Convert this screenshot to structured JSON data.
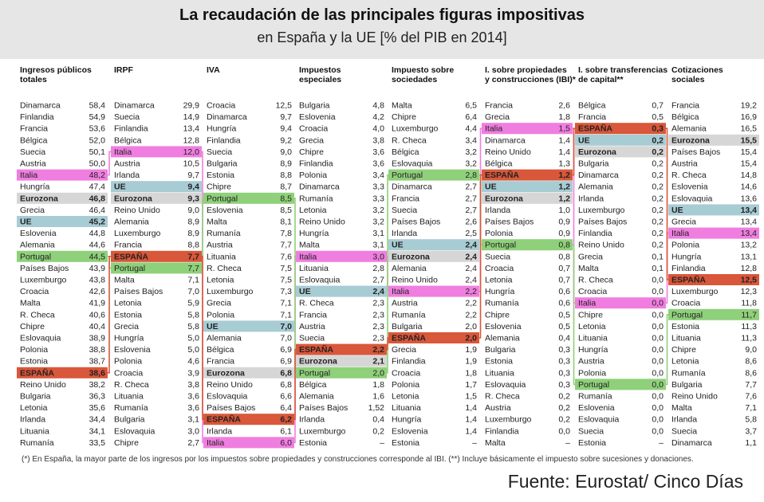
{
  "title": "La recaudación de las principales figuras impositivas",
  "subtitle": "en España y la UE [% del PIB en 2014]",
  "footnote": "(*) En España, la mayor parte de los ingresos por los impuestos sobre propiedades y construcciones corresponde al IBI. (**) Incluye básicamente el impuesto sobre sucesiones y donaciones.",
  "source": "Fuente: Eurostat/ Cinco Días",
  "colors": {
    "spain": "#d9573a",
    "eu": "#a8ccd4",
    "eurozone": "#d6d6d6",
    "portugal": "#8fd07a",
    "italy": "#f07ee0",
    "header_bg": "#e6e6e6"
  },
  "chart_data": {
    "type": "table",
    "highlights": {
      "ESPAÑA": "spain",
      "UE": "eu",
      "Eurozona": "eurozone",
      "Portugal": "portugal",
      "Italia": "italy"
    },
    "columns": [
      {
        "header": [
          "Ingresos públicos",
          "totales"
        ],
        "rows": [
          [
            "Dinamarca",
            "58,4"
          ],
          [
            "Finlandia",
            "54,9"
          ],
          [
            "Francia",
            "53,6"
          ],
          [
            "Bélgica",
            "52,0"
          ],
          [
            "Suecia",
            "50,1"
          ],
          [
            "Austria",
            "50,0"
          ],
          [
            "Italia",
            "48,2"
          ],
          [
            "Hungría",
            "47,4"
          ],
          [
            "Eurozona",
            "46,8"
          ],
          [
            "Grecia",
            "46,4"
          ],
          [
            "UE",
            "45,2"
          ],
          [
            "Eslovenia",
            "44,8"
          ],
          [
            "Alemania",
            "44,6"
          ],
          [
            "Portugal",
            "44,5"
          ],
          [
            "Países Bajos",
            "43,9"
          ],
          [
            "Luxemburgo",
            "43,8"
          ],
          [
            "Croacia",
            "42,6"
          ],
          [
            "Malta",
            "41,9"
          ],
          [
            "R. Checa",
            "40,6"
          ],
          [
            "Chipre",
            "40,4"
          ],
          [
            "Eslovaquia",
            "38,9"
          ],
          [
            "Polonia",
            "38,8"
          ],
          [
            "Estonia",
            "38,7"
          ],
          [
            "ESPAÑA",
            "38,6"
          ],
          [
            "Reino Unido",
            "38,2"
          ],
          [
            "Bulgaria",
            "36,3"
          ],
          [
            "Letonia",
            "35,6"
          ],
          [
            "Irlanda",
            "34,4"
          ],
          [
            "Lituania",
            "34,1"
          ],
          [
            "Rumanía",
            "33,5"
          ]
        ]
      },
      {
        "header": [
          "IRPF"
        ],
        "rows": [
          [
            "Dinamarca",
            "29,9"
          ],
          [
            "Suecia",
            "14,9"
          ],
          [
            "Finlandia",
            "13,4"
          ],
          [
            "Bélgica",
            "12,8"
          ],
          [
            "Italia",
            "12,0"
          ],
          [
            "Austria",
            "10,5"
          ],
          [
            "Irlanda",
            "9,7"
          ],
          [
            "UE",
            "9,4"
          ],
          [
            "Eurozona",
            "9,3"
          ],
          [
            "Reino Unido",
            "9,0"
          ],
          [
            "Alemania",
            "8,9"
          ],
          [
            "Luxemburgo",
            "8,9"
          ],
          [
            "Francia",
            "8,8"
          ],
          [
            "ESPAÑA",
            "7,7"
          ],
          [
            "Portugal",
            "7,7"
          ],
          [
            "Malta",
            "7,1"
          ],
          [
            "Países Bajos",
            "7,0"
          ],
          [
            "Letonia",
            "5,9"
          ],
          [
            "Estonia",
            "5,8"
          ],
          [
            "Grecia",
            "5,8"
          ],
          [
            "Hungría",
            "5,0"
          ],
          [
            "Eslovenia",
            "5,0"
          ],
          [
            "Polonia",
            "4,6"
          ],
          [
            "Croacia",
            "3,9"
          ],
          [
            "R. Checa",
            "3,8"
          ],
          [
            "Lituania",
            "3,6"
          ],
          [
            "Rumanía",
            "3,6"
          ],
          [
            "Bulgaria",
            "3,1"
          ],
          [
            "Eslovaquia",
            "3,0"
          ],
          [
            "Chipre",
            "2,7"
          ]
        ]
      },
      {
        "header": [
          "IVA"
        ],
        "rows": [
          [
            "Croacia",
            "12,5"
          ],
          [
            "Dinamarca",
            "9,7"
          ],
          [
            "Hungría",
            "9,4"
          ],
          [
            "Finlandia",
            "9,2"
          ],
          [
            "Suecia",
            "9,0"
          ],
          [
            "Bulgaria",
            "8,9"
          ],
          [
            "Estonia",
            "8,8"
          ],
          [
            "Chipre",
            "8,7"
          ],
          [
            "Portugal",
            "8,5"
          ],
          [
            "Eslovenia",
            "8,5"
          ],
          [
            "Malta",
            "8,1"
          ],
          [
            "Rumanía",
            "7,8"
          ],
          [
            "Austria",
            "7,7"
          ],
          [
            "Lituania",
            "7,6"
          ],
          [
            "R. Checa",
            "7,5"
          ],
          [
            "Letonia",
            "7,5"
          ],
          [
            "Luxemburgo",
            "7,3"
          ],
          [
            "Grecia",
            "7,1"
          ],
          [
            "Polonia",
            "7,1"
          ],
          [
            "UE",
            "7,0"
          ],
          [
            "Alemania",
            "7,0"
          ],
          [
            "Bélgica",
            "6,9"
          ],
          [
            "Francia",
            "6,9"
          ],
          [
            "Eurozona",
            "6,8"
          ],
          [
            "Reino Unido",
            "6,8"
          ],
          [
            "Eslovaquia",
            "6,6"
          ],
          [
            "Países Bajos",
            "6,4"
          ],
          [
            "ESPAÑA",
            "6,2"
          ],
          [
            "Irlanda",
            "6,1"
          ],
          [
            "Italia",
            "6,0"
          ]
        ]
      },
      {
        "header": [
          "Impuestos",
          "especiales"
        ],
        "rows": [
          [
            "Bulgaria",
            "4,8"
          ],
          [
            "Eslovenia",
            "4,2"
          ],
          [
            "Croacia",
            "4,0"
          ],
          [
            "Grecia",
            "3,8"
          ],
          [
            "Chipre",
            "3,6"
          ],
          [
            "Finlandia",
            "3,6"
          ],
          [
            "Polonia",
            "3,4"
          ],
          [
            "Dinamarca",
            "3,3"
          ],
          [
            "Rumanía",
            "3,3"
          ],
          [
            "Letonia",
            "3,2"
          ],
          [
            "Reino Unido",
            "3,2"
          ],
          [
            "Hungría",
            "3,1"
          ],
          [
            "Malta",
            "3,1"
          ],
          [
            "Italia",
            "3,0"
          ],
          [
            "Lituania",
            "2,8"
          ],
          [
            "Eslovaquia",
            "2,7"
          ],
          [
            "UE",
            "2,4"
          ],
          [
            "R. Checa",
            "2,3"
          ],
          [
            "Francia",
            "2,3"
          ],
          [
            "Austria",
            "2,3"
          ],
          [
            "Suecia",
            "2,3"
          ],
          [
            "ESPAÑA",
            "2,2"
          ],
          [
            "Eurozona",
            "2,1"
          ],
          [
            "Portugal",
            "2,0"
          ],
          [
            "Bélgica",
            "1,8"
          ],
          [
            "Alemania",
            "1,6"
          ],
          [
            "Países Bajos",
            "1,52"
          ],
          [
            "Irlanda",
            "0,4"
          ],
          [
            "Luxemburgo",
            "0,2"
          ],
          [
            "Estonia",
            "–"
          ]
        ]
      },
      {
        "header": [
          "Impuesto sobre",
          "sociedades"
        ],
        "rows": [
          [
            "Malta",
            "6,5"
          ],
          [
            "Chipre",
            "6,4"
          ],
          [
            "Luxemburgo",
            "4,4"
          ],
          [
            "R. Checa",
            "3,4"
          ],
          [
            "Bélgica",
            "3,2"
          ],
          [
            "Eslovaquia",
            "3,2"
          ],
          [
            "Portugal",
            "2,8"
          ],
          [
            "Dinamarca",
            "2,7"
          ],
          [
            "Francia",
            "2,7"
          ],
          [
            "Suecia",
            "2,7"
          ],
          [
            "Países Bajos",
            "2,6"
          ],
          [
            "Irlanda",
            "2,5"
          ],
          [
            "UE",
            "2,4"
          ],
          [
            "Eurozona",
            "2,4"
          ],
          [
            "Alemania",
            "2,4"
          ],
          [
            "Reino Unido",
            "2,4"
          ],
          [
            "Italia",
            "2,2"
          ],
          [
            "Austria",
            "2,2"
          ],
          [
            "Rumanía",
            "2,2"
          ],
          [
            "Bulgaria",
            "2,0"
          ],
          [
            "ESPAÑA",
            "2,0"
          ],
          [
            "Grecia",
            "1,9"
          ],
          [
            "Finlandia",
            "1,9"
          ],
          [
            "Croacia",
            "1,8"
          ],
          [
            "Polonia",
            "1,7"
          ],
          [
            "Letonia",
            "1,5"
          ],
          [
            "Lituania",
            "1,4"
          ],
          [
            "Hungría",
            "1,4"
          ],
          [
            "Eslovenia",
            "1,4"
          ],
          [
            "Estonia",
            "–"
          ]
        ]
      },
      {
        "header": [
          "I. sobre propiedades",
          "y construcciones (IBI)*"
        ],
        "rows": [
          [
            "Francia",
            "2,6"
          ],
          [
            "Grecia",
            "1,8"
          ],
          [
            "Italia",
            "1,5"
          ],
          [
            "Dinamarca",
            "1,4"
          ],
          [
            "Reino Unido",
            "1,4"
          ],
          [
            "Bélgica",
            "1,3"
          ],
          [
            "ESPAÑA",
            "1,2"
          ],
          [
            "UE",
            "1,2"
          ],
          [
            "Eurozona",
            "1,2"
          ],
          [
            "Irlanda",
            "1,0"
          ],
          [
            "Países Bajos",
            "0,9"
          ],
          [
            "Polonia",
            "0,9"
          ],
          [
            "Portugal",
            "0,8"
          ],
          [
            "Suecia",
            "0,8"
          ],
          [
            "Croacia",
            "0,7"
          ],
          [
            "Letonia",
            "0,7"
          ],
          [
            "Hungría",
            "0,6"
          ],
          [
            "Rumanía",
            "0,6"
          ],
          [
            "Chipre",
            "0,5"
          ],
          [
            "Eslovenia",
            "0,5"
          ],
          [
            "Alemania",
            "0,4"
          ],
          [
            "Bulgaria",
            "0,3"
          ],
          [
            "Estonia",
            "0,3"
          ],
          [
            "Lituania",
            "0,3"
          ],
          [
            "Eslovaquia",
            "0,3"
          ],
          [
            "R. Checa",
            "0,2"
          ],
          [
            "Austria",
            "0,2"
          ],
          [
            "Luxemburgo",
            "0,2"
          ],
          [
            "Finlandia",
            "0,0"
          ],
          [
            "Malta",
            "–"
          ]
        ]
      },
      {
        "header": [
          "I. sobre transferencias",
          "de capital**"
        ],
        "rows": [
          [
            "Bélgica",
            "0,7"
          ],
          [
            "Francia",
            "0,5"
          ],
          [
            "ESPAÑA",
            "0,3"
          ],
          [
            "UE",
            "0,2"
          ],
          [
            "Eurozona",
            "0,2"
          ],
          [
            "Bulgaria",
            "0,2"
          ],
          [
            "Dinamarca",
            "0,2"
          ],
          [
            "Alemania",
            "0,2"
          ],
          [
            "Irlanda",
            "0,2"
          ],
          [
            "Luxemburgo",
            "0,2"
          ],
          [
            "Países Bajos",
            "0,2"
          ],
          [
            "Finlandia",
            "0,2"
          ],
          [
            "Reino Unido",
            "0,2"
          ],
          [
            "Grecia",
            "0,1"
          ],
          [
            "Malta",
            "0,1"
          ],
          [
            "R. Checa",
            "0,0"
          ],
          [
            "Croacia",
            "0,0"
          ],
          [
            "Italia",
            "0,0"
          ],
          [
            "Chipre",
            "0,0"
          ],
          [
            "Letonia",
            "0,0"
          ],
          [
            "Lituania",
            "0,0"
          ],
          [
            "Hungría",
            "0,0"
          ],
          [
            "Austria",
            "0,0"
          ],
          [
            "Polonia",
            "0,0"
          ],
          [
            "Portugal",
            "0,0"
          ],
          [
            "Rumanía",
            "0,0"
          ],
          [
            "Eslovenia",
            "0,0"
          ],
          [
            "Eslovaquia",
            "0,0"
          ],
          [
            "Suecia",
            "0,0"
          ],
          [
            "Estonia",
            "–"
          ]
        ]
      },
      {
        "header": [
          "Cotizaciones",
          "sociales"
        ],
        "rows": [
          [
            "Francia",
            "19,2"
          ],
          [
            "Bélgica",
            "16,9"
          ],
          [
            "Alemania",
            "16,5"
          ],
          [
            "Eurozona",
            "15,5"
          ],
          [
            "Países Bajos",
            "15,4"
          ],
          [
            "Austria",
            "15,4"
          ],
          [
            "R. Checa",
            "14,8"
          ],
          [
            "Eslovenia",
            "14,6"
          ],
          [
            "Eslovaquia",
            "13,6"
          ],
          [
            "UE",
            "13,4"
          ],
          [
            "Grecia",
            "13,4"
          ],
          [
            "Italia",
            "13,4"
          ],
          [
            "Polonia",
            "13,2"
          ],
          [
            "Hungría",
            "13,1"
          ],
          [
            "Finlandia",
            "12,8"
          ],
          [
            "ESPAÑA",
            "12,5"
          ],
          [
            "Luxemburgo",
            "12,3"
          ],
          [
            "Croacia",
            "11,8"
          ],
          [
            "Portugal",
            "11,7"
          ],
          [
            "Estonia",
            "11,3"
          ],
          [
            "Lituania",
            "11,3"
          ],
          [
            "Chipre",
            "9,0"
          ],
          [
            "Letonia",
            "8,6"
          ],
          [
            "Rumanía",
            "8,6"
          ],
          [
            "Bulgaria",
            "7,7"
          ],
          [
            "Reino Unido",
            "7,6"
          ],
          [
            "Malta",
            "7,1"
          ],
          [
            "Irlanda",
            "5,8"
          ],
          [
            "Suecia",
            "3,7"
          ],
          [
            "Dinamarca",
            "1,1"
          ]
        ]
      }
    ]
  }
}
